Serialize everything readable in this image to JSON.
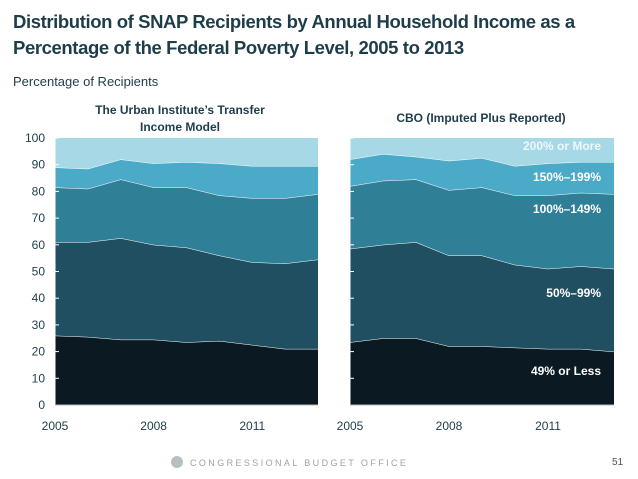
{
  "page": {
    "title": "Distribution of SNAP Recipients by Annual Household Income as a Percentage of the Federal Poverty Level, 2005 to 2013",
    "subtitle": "Percentage of Recipients",
    "footer": "CONGRESSIONAL BUDGET OFFICE",
    "page_number": "51"
  },
  "colors": {
    "band_0": "#0b1a22",
    "band_1": "#1f4f60",
    "band_2": "#2f7f97",
    "band_3": "#4aaac7",
    "band_4": "#a6d8e6",
    "title": "#1e3d4a"
  },
  "chart_data": [
    {
      "type": "area",
      "stacked": true,
      "title": "The Urban Institute’s Transfer Income Model",
      "x": [
        2005,
        2006,
        2007,
        2008,
        2009,
        2010,
        2011,
        2012,
        2013
      ],
      "xticks": [
        "2005",
        "2008",
        "2011"
      ],
      "yticks": [
        "0",
        "10",
        "20",
        "30",
        "40",
        "50",
        "60",
        "70",
        "80",
        "90",
        "100"
      ],
      "ylim": [
        0,
        100
      ],
      "series": [
        {
          "values": [
            26,
            25.5,
            24.5,
            24.5,
            23.5,
            24,
            22.5,
            21,
            21
          ]
        },
        {
          "values": [
            35,
            35.5,
            38,
            35.5,
            35.5,
            32,
            31,
            32,
            33.5
          ]
        },
        {
          "values": [
            20.5,
            20,
            22,
            21.5,
            22.5,
            22.5,
            24,
            24.5,
            24.5
          ]
        },
        {
          "values": [
            7.5,
            7.5,
            7.5,
            9,
            9.5,
            12,
            12,
            12,
            10.5
          ]
        },
        {
          "values": [
            11,
            11.5,
            8,
            9.5,
            9,
            9.5,
            10.5,
            10.5,
            10.5
          ]
        }
      ]
    },
    {
      "type": "area",
      "stacked": true,
      "title": "CBO (Imputed Plus Reported)",
      "x": [
        2005,
        2006,
        2007,
        2008,
        2009,
        2010,
        2011,
        2012,
        2013
      ],
      "xticks": [
        "2005",
        "2008",
        "2011"
      ],
      "ylim": [
        0,
        100
      ],
      "series": [
        {
          "name": "49% or Less",
          "values": [
            23.5,
            25,
            25,
            22,
            22,
            21.5,
            21,
            21,
            20
          ]
        },
        {
          "name": "50%–99%",
          "values": [
            35,
            35,
            36,
            34,
            34,
            31,
            30,
            31,
            31
          ]
        },
        {
          "name": "100%–149%",
          "values": [
            23.5,
            24,
            23.5,
            24.5,
            25.5,
            26,
            27.5,
            27.5,
            28
          ]
        },
        {
          "name": "150%–199%",
          "values": [
            10,
            10,
            8.5,
            11,
            11,
            11,
            12,
            11.5,
            12
          ]
        },
        {
          "name": "200% or More",
          "values": [
            8,
            6,
            7,
            8.5,
            7.5,
            10.5,
            9.5,
            9,
            9
          ]
        }
      ]
    }
  ]
}
